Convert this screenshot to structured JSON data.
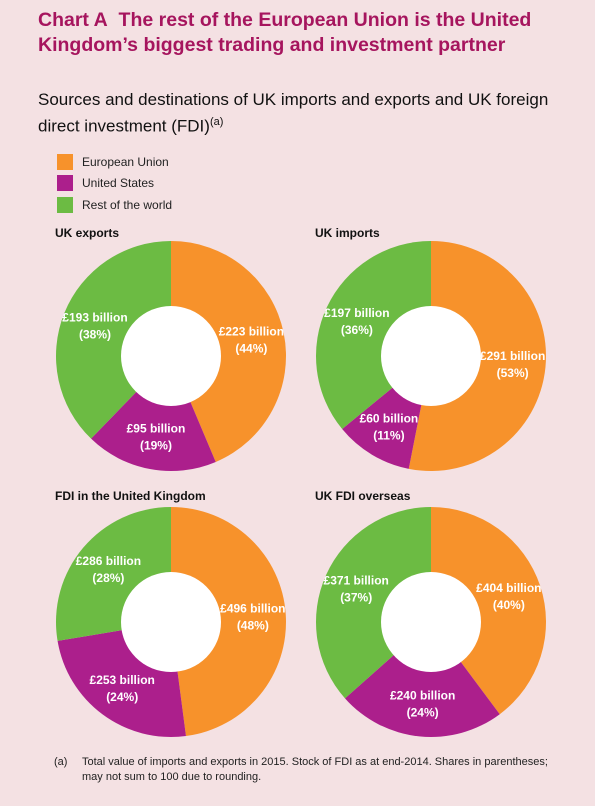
{
  "header": {
    "chart_label": "Chart A",
    "title": "The rest of the European Union is the United Kingdom’s biggest trading and investment partner",
    "subtitle": "Sources and destinations of UK imports and exports and UK foreign direct investment (FDI)",
    "subtitle_note": "(a)"
  },
  "legend": [
    {
      "label": "European Union",
      "color": "#f7922b"
    },
    {
      "label": "United States",
      "color": "#ac1f8c"
    },
    {
      "label": "Rest of the world",
      "color": "#6cbb43"
    }
  ],
  "colors": {
    "background": "#f4e1e3",
    "title": "#a6155e",
    "eu": "#f7922b",
    "us": "#ac1f8c",
    "rest": "#6cbb43",
    "hole": "#ffffff",
    "slice_label": "#ffffff"
  },
  "footnote": {
    "mark": "(a)",
    "text": "Total value of imports and exports in 2015.  Stock of FDI as at end-2014.  Shares in parentheses;  may not sum to 100 due to rounding."
  },
  "chart_data": [
    {
      "type": "pie",
      "title": "UK exports",
      "slices": [
        {
          "category": "European Union",
          "value": 223,
          "label": "£223 billion",
          "share": "(44%)"
        },
        {
          "category": "United States",
          "value": 95,
          "label": "£95 billion",
          "share": "(19%)"
        },
        {
          "category": "Rest of the world",
          "value": 193,
          "label": "£193 billion",
          "share": "(38%)"
        }
      ]
    },
    {
      "type": "pie",
      "title": "UK imports",
      "slices": [
        {
          "category": "European Union",
          "value": 291,
          "label": "£291 billion",
          "share": "(53%)"
        },
        {
          "category": "United States",
          "value": 60,
          "label": "£60 billion",
          "share": "(11%)"
        },
        {
          "category": "Rest of the world",
          "value": 197,
          "label": "£197 billion",
          "share": "(36%)"
        }
      ]
    },
    {
      "type": "pie",
      "title": "FDI in the United Kingdom",
      "slices": [
        {
          "category": "European Union",
          "value": 496,
          "label": "£496 billion",
          "share": "(48%)"
        },
        {
          "category": "United States",
          "value": 253,
          "label": "£253 billion",
          "share": "(24%)"
        },
        {
          "category": "Rest of the world",
          "value": 286,
          "label": "£286 billion",
          "share": "(28%)"
        }
      ]
    },
    {
      "type": "pie",
      "title": "UK FDI overseas",
      "slices": [
        {
          "category": "European Union",
          "value": 404,
          "label": "£404 billion",
          "share": "(40%)"
        },
        {
          "category": "United States",
          "value": 240,
          "label": "£240 billion",
          "share": "(24%)"
        },
        {
          "category": "Rest of the world",
          "value": 371,
          "label": "£371 billion",
          "share": "(37%)"
        }
      ]
    }
  ]
}
